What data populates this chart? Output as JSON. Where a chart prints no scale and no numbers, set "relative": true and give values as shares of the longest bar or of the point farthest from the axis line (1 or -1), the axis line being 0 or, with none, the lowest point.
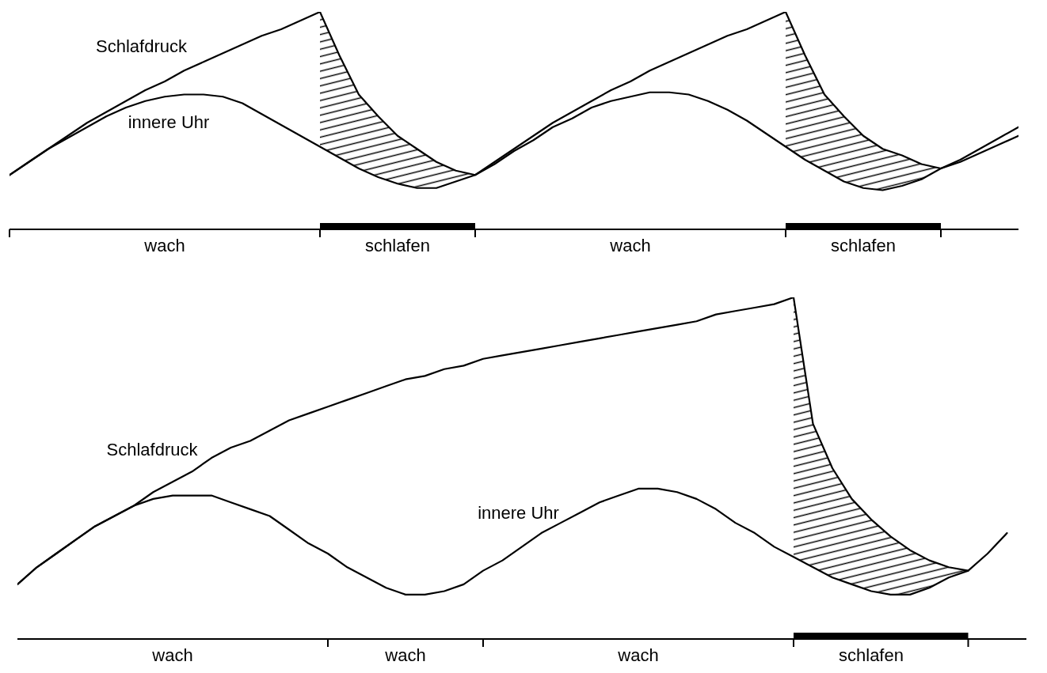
{
  "chart_data": [
    {
      "type": "line",
      "relative": true,
      "marker": "none",
      "line_style": "solid",
      "categories": [
        null,
        null,
        null,
        null,
        null,
        null,
        null,
        null,
        "wach",
        null,
        null,
        null,
        null,
        null,
        null,
        null,
        null,
        null,
        null,
        null,
        "schlafen",
        null,
        null,
        null,
        null,
        null,
        null,
        null,
        null,
        null,
        null,
        null,
        "wach",
        null,
        null,
        null,
        null,
        null,
        null,
        null,
        null,
        null,
        null,
        null,
        "schlafen",
        null,
        null,
        null,
        null,
        null,
        null,
        null,
        null
      ],
      "series": [
        {
          "name": "Schlafdruck",
          "color": "#000000",
          "values": [
            0.25,
            0.31,
            0.37,
            0.43,
            0.49,
            0.54,
            0.59,
            0.64,
            0.68,
            0.73,
            0.77,
            0.81,
            0.85,
            0.89,
            0.92,
            0.96,
            1.0,
            0.8,
            0.62,
            0.52,
            0.43,
            0.37,
            0.31,
            0.27,
            0.25,
            0.31,
            0.37,
            0.43,
            0.49,
            0.54,
            0.59,
            0.64,
            0.68,
            0.73,
            0.77,
            0.81,
            0.85,
            0.89,
            0.92,
            0.96,
            1.0,
            0.8,
            0.62,
            0.52,
            0.43,
            0.37,
            0.34,
            0.3,
            0.28,
            0.32,
            0.37,
            0.42,
            0.47
          ],
          "lower": [
            null,
            null,
            null,
            null,
            null,
            null,
            null,
            null,
            null,
            null,
            null,
            null,
            null,
            null,
            null,
            null,
            0.38,
            0.33,
            0.28,
            0.24,
            0.21,
            0.19,
            0.19,
            0.22,
            0.25,
            null,
            null,
            null,
            null,
            null,
            null,
            null,
            null,
            null,
            null,
            null,
            null,
            null,
            null,
            null,
            0.38,
            0.32,
            0.27,
            0.22,
            0.19,
            0.18,
            0.2,
            0.23,
            0.28,
            null,
            null,
            null,
            null
          ],
          "upper": [
            null,
            null,
            null,
            null,
            null,
            null,
            null,
            null,
            null,
            null,
            null,
            null,
            null,
            null,
            null,
            null,
            1.0,
            0.8,
            0.62,
            0.52,
            0.43,
            0.37,
            0.31,
            0.27,
            0.25,
            null,
            null,
            null,
            null,
            null,
            null,
            null,
            null,
            null,
            null,
            null,
            null,
            null,
            null,
            null,
            1.0,
            0.8,
            0.62,
            0.52,
            0.43,
            0.37,
            0.34,
            0.3,
            0.28,
            null,
            null,
            null,
            null
          ]
        },
        {
          "name": "innere Uhr",
          "color": "#000000",
          "values": [
            0.25,
            0.31,
            0.37,
            0.42,
            0.47,
            0.52,
            0.56,
            0.59,
            0.61,
            0.62,
            0.62,
            0.61,
            0.58,
            0.53,
            0.48,
            0.43,
            0.38,
            0.33,
            0.28,
            0.24,
            0.21,
            0.19,
            0.19,
            0.22,
            0.25,
            0.3,
            0.36,
            0.41,
            0.47,
            0.51,
            0.56,
            0.59,
            0.61,
            0.63,
            0.63,
            0.62,
            0.59,
            0.55,
            0.5,
            0.44,
            0.38,
            0.32,
            0.27,
            0.22,
            0.19,
            0.18,
            0.2,
            0.23,
            0.28,
            0.31,
            0.35,
            0.39,
            0.43
          ]
        }
      ]
    },
    {
      "type": "line",
      "relative": true,
      "marker": "none",
      "line_style": "solid",
      "categories": [
        null,
        null,
        null,
        null,
        null,
        null,
        null,
        null,
        "wach",
        null,
        null,
        null,
        null,
        null,
        null,
        null,
        null,
        null,
        null,
        null,
        "wach",
        null,
        null,
        null,
        null,
        null,
        null,
        null,
        null,
        null,
        null,
        null,
        "wach",
        null,
        null,
        null,
        null,
        null,
        null,
        null,
        null,
        null,
        null,
        null,
        "schlafen",
        null,
        null,
        null,
        null,
        null,
        null,
        null,
        null
      ],
      "series": [
        {
          "name": "Schlafdruck",
          "color": "#000000",
          "values": [
            0.16,
            0.21,
            0.25,
            0.29,
            0.33,
            0.36,
            0.39,
            0.43,
            0.46,
            0.49,
            0.53,
            0.56,
            0.58,
            0.61,
            0.64,
            0.66,
            0.68,
            0.7,
            0.72,
            0.74,
            0.76,
            0.77,
            0.79,
            0.8,
            0.82,
            0.83,
            0.84,
            0.85,
            0.86,
            0.87,
            0.88,
            0.89,
            0.9,
            0.91,
            0.92,
            0.93,
            0.95,
            0.96,
            0.97,
            0.98,
            1.0,
            0.63,
            0.5,
            0.41,
            0.35,
            0.3,
            0.26,
            0.23,
            0.21,
            0.2,
            null,
            null,
            null
          ],
          "lower": [
            null,
            null,
            null,
            null,
            null,
            null,
            null,
            null,
            null,
            null,
            null,
            null,
            null,
            null,
            null,
            null,
            null,
            null,
            null,
            null,
            null,
            null,
            null,
            null,
            null,
            null,
            null,
            null,
            null,
            null,
            null,
            null,
            null,
            null,
            null,
            null,
            null,
            null,
            null,
            null,
            0.24,
            0.21,
            0.18,
            0.16,
            0.14,
            0.13,
            0.13,
            0.15,
            0.18,
            0.2,
            null,
            null,
            null
          ],
          "upper": [
            null,
            null,
            null,
            null,
            null,
            null,
            null,
            null,
            null,
            null,
            null,
            null,
            null,
            null,
            null,
            null,
            null,
            null,
            null,
            null,
            null,
            null,
            null,
            null,
            null,
            null,
            null,
            null,
            null,
            null,
            null,
            null,
            null,
            null,
            null,
            null,
            null,
            null,
            null,
            null,
            1.0,
            0.63,
            0.5,
            0.41,
            0.35,
            0.3,
            0.26,
            0.23,
            0.21,
            0.2,
            null,
            null,
            null
          ]
        },
        {
          "name": "innere Uhr",
          "color": "#000000",
          "values": [
            0.16,
            0.21,
            0.25,
            0.29,
            0.33,
            0.36,
            0.39,
            0.41,
            0.42,
            0.42,
            0.42,
            0.4,
            0.38,
            0.36,
            0.32,
            0.28,
            0.25,
            0.21,
            0.18,
            0.15,
            0.13,
            0.13,
            0.14,
            0.16,
            0.2,
            0.23,
            0.27,
            0.31,
            0.34,
            0.37,
            0.4,
            0.42,
            0.44,
            0.44,
            0.43,
            0.41,
            0.38,
            0.34,
            0.31,
            0.27,
            0.24,
            0.21,
            0.18,
            0.16,
            0.14,
            0.13,
            0.13,
            0.15,
            0.18,
            0.2,
            0.25,
            0.31,
            null
          ]
        }
      ]
    }
  ]
}
